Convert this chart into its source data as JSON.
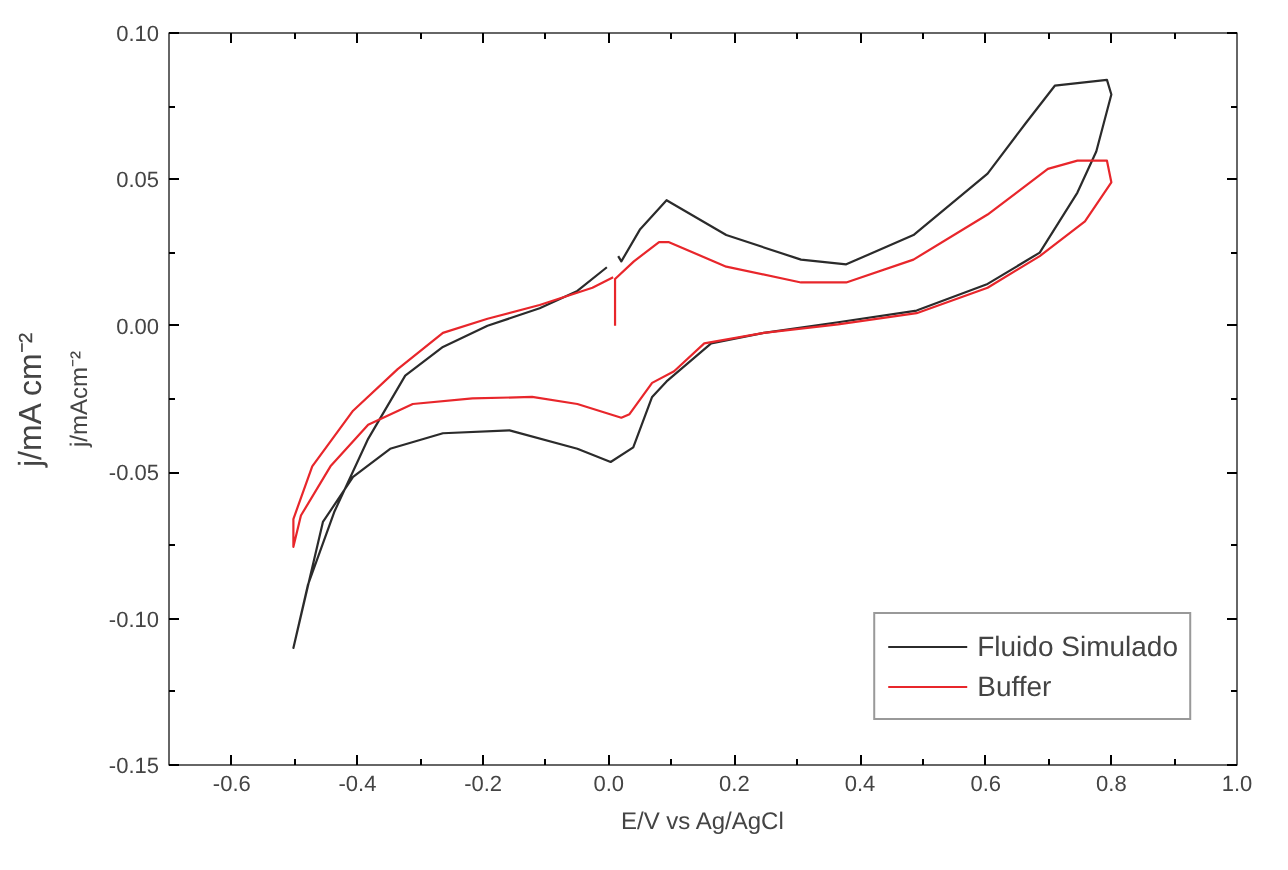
{
  "chart_data": {
    "type": "line",
    "xlabel": "E/V vs Ag/AgCl",
    "ylabel": "j/mAcm⁻²",
    "annotations": [
      "j/mA cm⁻²"
    ],
    "xlim": [
      -0.7,
      1.0
    ],
    "xticks": [
      -0.6,
      -0.4,
      -0.2,
      {
        "value": 0,
        "label": "0.0"
      },
      0.2,
      0.4,
      0.6,
      0.8,
      {
        "value": 1,
        "label": "1.0"
      }
    ],
    "ylim": [
      -0.15,
      0.1
    ],
    "yticks": [
      -0.15,
      {
        "value": -0.1,
        "label": "-0.10"
      },
      -0.05,
      {
        "value": 0,
        "label": "0.00"
      },
      0.05,
      {
        "value": 0.1,
        "label": "0.10"
      }
    ],
    "grid": false,
    "legend": "bottom right",
    "marker": "none",
    "line_style": "solid",
    "series": [
      {
        "name": "Fluido Simulado",
        "color": "#2b2b2b",
        "x": [
          0.015,
          0.02,
          0.05,
          0.092,
          0.187,
          0.306,
          0.378,
          0.485,
          0.603,
          0.663,
          0.71,
          0.793,
          0.8,
          0.776,
          0.746,
          0.686,
          0.603,
          0.49,
          0.365,
          0.247,
          0.163,
          0.092,
          0.069,
          0.039,
          0.003,
          -0.05,
          -0.158,
          -0.264,
          -0.348,
          -0.407,
          -0.455,
          -0.502,
          -0.479,
          -0.437,
          -0.383,
          -0.324,
          -0.264,
          -0.193,
          -0.11,
          -0.05,
          -0.003
        ],
        "values": [
          0.0238,
          0.022,
          0.033,
          0.0429,
          0.031,
          0.0226,
          0.021,
          0.031,
          0.052,
          0.069,
          0.082,
          0.084,
          0.079,
          0.0595,
          0.0455,
          0.025,
          0.0143,
          0.0052,
          0.0012,
          -0.0024,
          -0.006,
          -0.019,
          -0.0243,
          -0.0415,
          -0.0465,
          -0.042,
          -0.0357,
          -0.0367,
          -0.042,
          -0.0516,
          -0.067,
          -0.11,
          -0.0886,
          -0.0636,
          -0.0386,
          -0.017,
          -0.0072,
          0.0,
          0.006,
          0.0119,
          0.02
        ]
      },
      {
        "name": "Buffer",
        "color": "#e8262b",
        "x": [
          0.01,
          0.01,
          0.04,
          0.08,
          0.095,
          0.187,
          0.306,
          0.378,
          0.485,
          0.603,
          0.699,
          0.746,
          0.793,
          0.8,
          0.758,
          0.686,
          0.603,
          0.49,
          0.365,
          0.247,
          0.152,
          0.104,
          0.069,
          0.033,
          0.02,
          -0.05,
          -0.122,
          -0.217,
          -0.312,
          -0.383,
          -0.443,
          -0.49,
          -0.502,
          -0.502,
          -0.472,
          -0.407,
          -0.336,
          -0.264,
          -0.193,
          -0.11,
          -0.026,
          0.007
        ],
        "values": [
          0.0,
          0.016,
          0.022,
          0.0286,
          0.0286,
          0.0202,
          0.0148,
          0.0148,
          0.0226,
          0.038,
          0.0536,
          0.0564,
          0.0564,
          0.049,
          0.0357,
          0.0238,
          0.013,
          0.0043,
          0.0005,
          -0.0024,
          -0.006,
          -0.0155,
          -0.0195,
          -0.0302,
          -0.0314,
          -0.0267,
          -0.0243,
          -0.0248,
          -0.0267,
          -0.0338,
          -0.048,
          -0.0648,
          -0.0755,
          -0.066,
          -0.048,
          -0.029,
          -0.0148,
          -0.0024,
          0.0024,
          0.0071,
          0.013,
          0.0166
        ]
      }
    ]
  }
}
